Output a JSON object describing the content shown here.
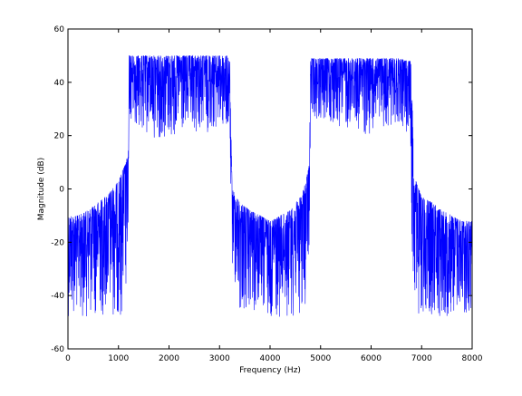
{
  "chart_data": {
    "type": "line",
    "title": "",
    "xlabel": "Frequency (Hz)",
    "ylabel": "Magnitude (dB)",
    "xlim": [
      0,
      8000
    ],
    "ylim": [
      -60,
      60
    ],
    "xticks": [
      0,
      1000,
      2000,
      3000,
      4000,
      5000,
      6000,
      7000,
      8000
    ],
    "yticks": [
      -60,
      -40,
      -20,
      0,
      20,
      40,
      60
    ],
    "xtick_labels": [
      "0",
      "1000",
      "2000",
      "3000",
      "4000",
      "5000",
      "6000",
      "7000",
      "8000"
    ],
    "ytick_labels": [
      "-60",
      "-40",
      "-20",
      "0",
      "20",
      "40",
      "60"
    ],
    "grid": false,
    "legend": "none",
    "line_color": "#0000ff",
    "series": [
      {
        "x": [
          0,
          200,
          400,
          600,
          800,
          1000,
          1100,
          1150,
          1200,
          1210,
          1500,
          2000,
          2500,
          3000,
          3150,
          3200,
          3250,
          3400,
          3600,
          3800,
          4000,
          4200,
          4400,
          4600,
          4700,
          4780,
          4800,
          5000,
          5500,
          6000,
          6500,
          6780,
          6800,
          6850,
          7000,
          7200,
          7400,
          7600,
          7800,
          8000
        ],
        "upper": [
          -10,
          -10,
          -8,
          -5,
          -2,
          3,
          8,
          10,
          15,
          50,
          50,
          50,
          50,
          50,
          50,
          48,
          0,
          -5,
          -8,
          -10,
          -12,
          -10,
          -8,
          -3,
          2,
          10,
          49,
          49,
          49,
          49,
          49,
          48,
          45,
          5,
          -3,
          -5,
          -8,
          -10,
          -12,
          -12
        ],
        "lower": [
          -48,
          -48,
          -48,
          -48,
          -48,
          -48,
          -48,
          -45,
          -30,
          25,
          20,
          18,
          20,
          22,
          20,
          18,
          -30,
          -48,
          -48,
          -48,
          -48,
          -48,
          -48,
          -48,
          -45,
          -30,
          28,
          25,
          22,
          20,
          25,
          20,
          -20,
          -48,
          -48,
          -48,
          -48,
          -48,
          -48,
          -48
        ]
      }
    ]
  }
}
